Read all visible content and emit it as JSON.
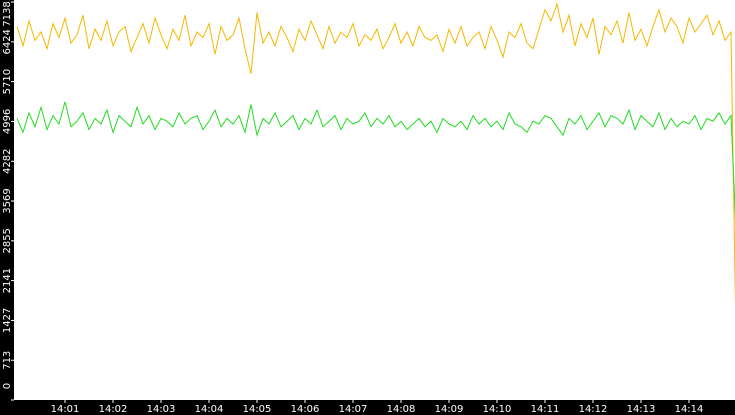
{
  "chart_data": {
    "type": "line",
    "x": [
      0,
      0.125,
      0.25,
      0.375,
      0.5,
      0.625,
      0.75,
      0.875,
      1,
      1.125,
      1.25,
      1.375,
      1.5,
      1.625,
      1.75,
      1.875,
      2,
      2.125,
      2.25,
      2.375,
      2.5,
      2.625,
      2.75,
      2.875,
      3,
      3.125,
      3.25,
      3.375,
      3.5,
      3.625,
      3.75,
      3.875,
      4,
      4.125,
      4.25,
      4.375,
      4.5,
      4.625,
      4.75,
      4.875,
      5,
      5.125,
      5.25,
      5.375,
      5.5,
      5.625,
      5.75,
      5.875,
      6,
      6.125,
      6.25,
      6.375,
      6.5,
      6.625,
      6.75,
      6.875,
      7,
      7.125,
      7.25,
      7.375,
      7.5,
      7.625,
      7.75,
      7.875,
      8,
      8.125,
      8.25,
      8.375,
      8.5,
      8.625,
      8.75,
      8.875,
      9,
      9.125,
      9.25,
      9.375,
      9.5,
      9.625,
      9.75,
      9.875,
      10,
      10.125,
      10.25,
      10.375,
      10.5,
      10.625,
      10.75,
      10.875,
      11,
      11.125,
      11.25,
      11.375,
      11.5,
      11.625,
      11.75,
      11.875,
      12,
      12.125,
      12.25,
      12.375,
      12.5,
      12.625,
      12.75,
      12.875,
      13,
      13.125,
      13.25,
      13.375,
      13.5,
      13.625,
      13.75,
      13.875,
      14,
      14.125,
      14.25,
      14.375,
      14.5,
      14.625,
      14.75,
      14.875,
      15
    ],
    "series": [
      {
        "color": "#f5b800",
        "values": [
          6700,
          6350,
          6800,
          6450,
          6600,
          6300,
          6750,
          6500,
          6850,
          6400,
          6550,
          6900,
          6300,
          6650,
          6450,
          6800,
          6350,
          6600,
          6700,
          6250,
          6500,
          6750,
          6400,
          6850,
          6550,
          6300,
          6650,
          6450,
          6900,
          6350,
          6600,
          6500,
          6750,
          6200,
          6700,
          6450,
          6550,
          6850,
          6300,
          5850,
          6950,
          6400,
          6600,
          6350,
          6700,
          6500,
          6250,
          6650,
          6450,
          6800,
          6550,
          6300,
          6700,
          6400,
          6600,
          6500,
          6750,
          6350,
          6550,
          6450,
          6650,
          6300,
          6500,
          6750,
          6400,
          6600,
          6350,
          6700,
          6500,
          6450,
          6550,
          6250,
          6650,
          6400,
          6700,
          6350,
          6500,
          6600,
          6300,
          6700,
          6450,
          6150,
          6600,
          6500,
          6750,
          6400,
          6300,
          6650,
          7000,
          6800,
          7100,
          6600,
          6900,
          6350,
          6750,
          6500,
          6850,
          6200,
          6700,
          6550,
          6800,
          6400,
          6950,
          6450,
          6650,
          6350,
          6700,
          7000,
          6600,
          6850,
          6700,
          6400,
          6850,
          6600,
          6750,
          6900,
          6550,
          6800,
          6450,
          6600,
          0
        ]
      },
      {
        "color": "#22dd22",
        "values": [
          5050,
          4800,
          5150,
          4900,
          5250,
          4850,
          5100,
          4950,
          5350,
          4900,
          5000,
          5150,
          4850,
          5050,
          4950,
          5200,
          4800,
          5100,
          5000,
          4900,
          5250,
          4950,
          5100,
          4850,
          5050,
          5000,
          4900,
          5150,
          4950,
          5050,
          5100,
          4850,
          5000,
          5200,
          4900,
          5050,
          4950,
          5100,
          4800,
          5300,
          4750,
          5050,
          4950,
          5150,
          4900,
          5000,
          5100,
          4850,
          5050,
          4950,
          5200,
          4900,
          5000,
          5100,
          4850,
          5050,
          4950,
          5000,
          5150,
          4900,
          5050,
          4950,
          5100,
          4900,
          5000,
          4850,
          4950,
          5050,
          4900,
          5000,
          4800,
          5050,
          4950,
          4900,
          5000,
          4850,
          5100,
          4950,
          5050,
          4900,
          5000,
          4850,
          5150,
          4950,
          4900,
          4800,
          5000,
          4950,
          5100,
          5050,
          4900,
          4750,
          5050,
          4950,
          5100,
          4850,
          5000,
          5150,
          4900,
          5100,
          5050,
          4950,
          5200,
          4850,
          5100,
          5000,
          4900,
          5150,
          4850,
          5050,
          4900,
          5000,
          4950,
          5100,
          4850,
          5050,
          5000,
          5150,
          4950,
          5100,
          2600
        ]
      }
    ],
    "xlim": [
      0,
      15
    ],
    "xticks": [
      {
        "value": 1,
        "label": "14:01"
      },
      {
        "value": 2,
        "label": "14:02"
      },
      {
        "value": 3,
        "label": "14:03"
      },
      {
        "value": 4,
        "label": "14:04"
      },
      {
        "value": 5,
        "label": "14:05"
      },
      {
        "value": 6,
        "label": "14:06"
      },
      {
        "value": 7,
        "label": "14:07"
      },
      {
        "value": 8,
        "label": "14:08"
      },
      {
        "value": 9,
        "label": "14:09"
      },
      {
        "value": 10,
        "label": "14:10"
      },
      {
        "value": 11,
        "label": "14:11"
      },
      {
        "value": 12,
        "label": "14:12"
      },
      {
        "value": 13,
        "label": "14:13"
      },
      {
        "value": 14,
        "label": "14:14"
      }
    ],
    "ylim": [
      0,
      7138
    ],
    "yticks": [
      0,
      713,
      1427,
      2141,
      2855,
      3569,
      4282,
      4996,
      5710,
      6424,
      7138
    ]
  }
}
